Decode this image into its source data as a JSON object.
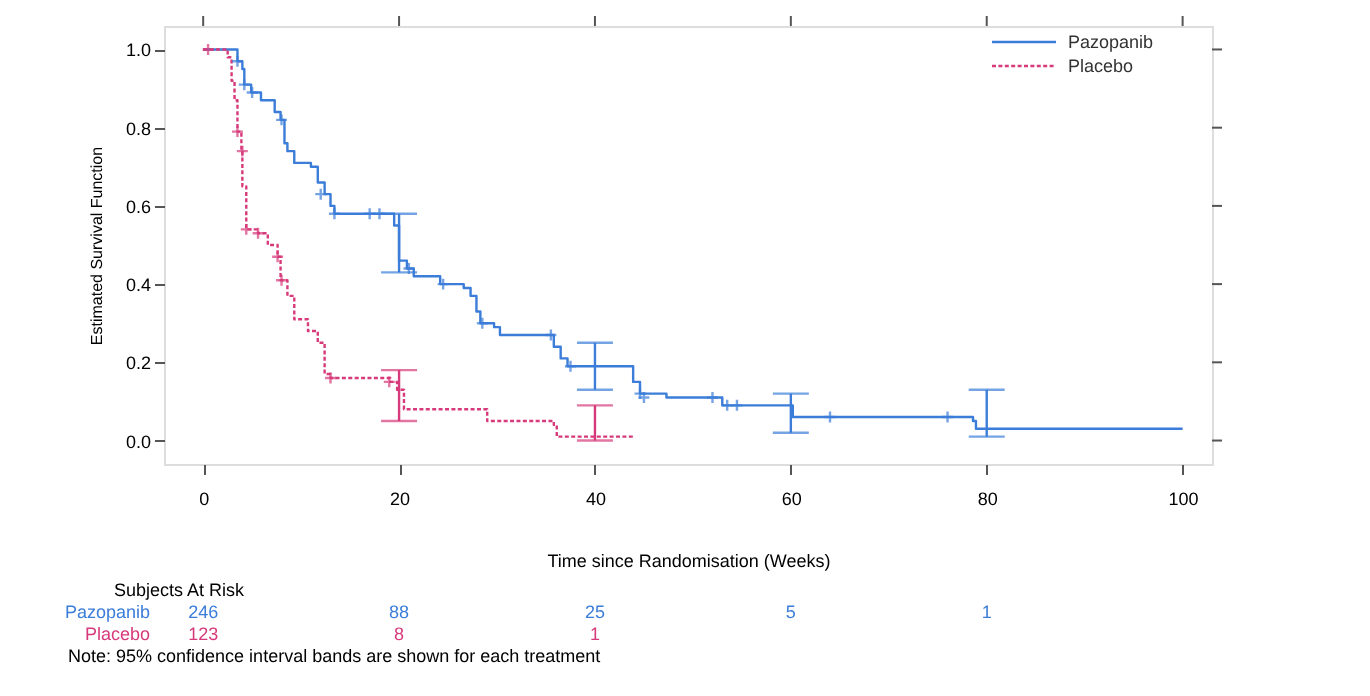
{
  "chart_data": {
    "type": "step",
    "xlabel": "Time since Randomisation (Weeks)",
    "ylabel": "Estimated Survival Function",
    "xlim": [
      -4,
      103
    ],
    "ylim": [
      -0.06,
      1.06
    ],
    "xticks": [
      0,
      20,
      40,
      60,
      80,
      100
    ],
    "yticks": [
      {
        "value": 0,
        "label": "0.0"
      },
      {
        "value": 0.2,
        "label": "0.2"
      },
      {
        "value": 0.4,
        "label": "0.4"
      },
      {
        "value": 0.6,
        "label": "0.6"
      },
      {
        "value": 0.8,
        "label": "0.8"
      },
      {
        "value": 1,
        "label": "1.0"
      }
    ],
    "grid": false,
    "legend": "top right",
    "series": [
      {
        "name": "Pazopanib",
        "color": "#3b7dd8",
        "line_style": "solid",
        "x": [
          0,
          2.9,
          3.5,
          4.0,
          4.2,
          4.9,
          5.9,
          7.3,
          7.9,
          8.3,
          8.6,
          9.3,
          11.0,
          11.7,
          12.4,
          13.0,
          13.4,
          18.1,
          19.5,
          20,
          20.8,
          21.5,
          24.2,
          26.6,
          27.3,
          27.9,
          28.3,
          29.7,
          30.3,
          35.8,
          36.5,
          37.2,
          40,
          43.2,
          43.9,
          44.6,
          47.3,
          53.0,
          59.2,
          60,
          60.2,
          78.6,
          78.9,
          80,
          100
        ],
        "values": [
          1.0,
          1.0,
          0.97,
          0.95,
          0.91,
          0.89,
          0.87,
          0.84,
          0.82,
          0.76,
          0.74,
          0.71,
          0.7,
          0.66,
          0.63,
          0.6,
          0.58,
          0.58,
          0.55,
          0.46,
          0.44,
          0.42,
          0.4,
          0.39,
          0.37,
          0.33,
          0.3,
          0.29,
          0.27,
          0.24,
          0.21,
          0.19,
          0.19,
          0.19,
          0.15,
          0.12,
          0.11,
          0.09,
          0.09,
          0.09,
          0.06,
          0.05,
          0.03,
          0.03,
          0.03
        ],
        "errors": [
          null,
          null,
          null,
          null,
          null,
          null,
          null,
          null,
          null,
          null,
          null,
          null,
          null,
          null,
          null,
          null,
          null,
          null,
          null,
          [
            0.43,
            0.58
          ],
          null,
          null,
          null,
          null,
          null,
          null,
          null,
          null,
          null,
          null,
          null,
          null,
          [
            0.13,
            0.25
          ],
          null,
          null,
          null,
          null,
          null,
          null,
          [
            0.02,
            0.12
          ],
          null,
          null,
          null,
          [
            0.01,
            0.13
          ],
          null
        ]
      },
      {
        "name": "Placebo",
        "color": "#d63a7a",
        "line_style": "dotted",
        "x": [
          0,
          1.8,
          2.5,
          2.9,
          3.2,
          3.5,
          3.9,
          4.0,
          4.4,
          5.6,
          6.6,
          7.6,
          7.9,
          8.6,
          9.3,
          10.7,
          11.7,
          12.4,
          13.0,
          19.1,
          19.8,
          20,
          20.5,
          28.3,
          29.0,
          35.8,
          36.1,
          40,
          43.9
        ],
        "values": [
          1.0,
          1.0,
          0.98,
          0.92,
          0.87,
          0.79,
          0.74,
          0.65,
          0.54,
          0.53,
          0.5,
          0.47,
          0.41,
          0.37,
          0.31,
          0.28,
          0.25,
          0.17,
          0.16,
          0.15,
          0.13,
          0.13,
          0.08,
          0.08,
          0.05,
          0.04,
          0.01,
          0.01,
          0.01
        ],
        "errors": [
          null,
          null,
          null,
          null,
          null,
          null,
          null,
          null,
          null,
          null,
          null,
          null,
          null,
          null,
          null,
          null,
          null,
          null,
          null,
          null,
          null,
          [
            0.05,
            0.18
          ],
          null,
          null,
          null,
          null,
          null,
          [
            0.0,
            0.09
          ],
          null
        ]
      },
      {
        "color": "#3b7dd8",
        "type": "scatter",
        "marker": "cross",
        "x": [
          3.5,
          4.2,
          5.0,
          8.0,
          12.0,
          13.4,
          17.0,
          18.0,
          21.0,
          24.5,
          28.5,
          35.5,
          37.5,
          44.6,
          45.0,
          52.0,
          53.5,
          54.5,
          64.0,
          76.0
        ],
        "values": [
          0.97,
          0.91,
          0.89,
          0.82,
          0.63,
          0.58,
          0.58,
          0.58,
          0.44,
          0.4,
          0.3,
          0.27,
          0.19,
          0.12,
          0.11,
          0.11,
          0.09,
          0.09,
          0.06,
          0.06
        ]
      },
      {
        "color": "#d63a7a",
        "type": "scatter",
        "marker": "cross",
        "x": [
          0.5,
          3.5,
          4.0,
          4.4,
          5.6,
          7.6,
          8.0,
          13.0,
          19.0
        ],
        "values": [
          1.0,
          0.79,
          0.74,
          0.54,
          0.53,
          0.47,
          0.41,
          0.16,
          0.15
        ]
      }
    ],
    "annotations": [
      "Subjects At Risk",
      "246 88 25 5 1",
      "123 8 1",
      "Note: 95% confidence interval bands are shown for each treatment"
    ]
  }
}
